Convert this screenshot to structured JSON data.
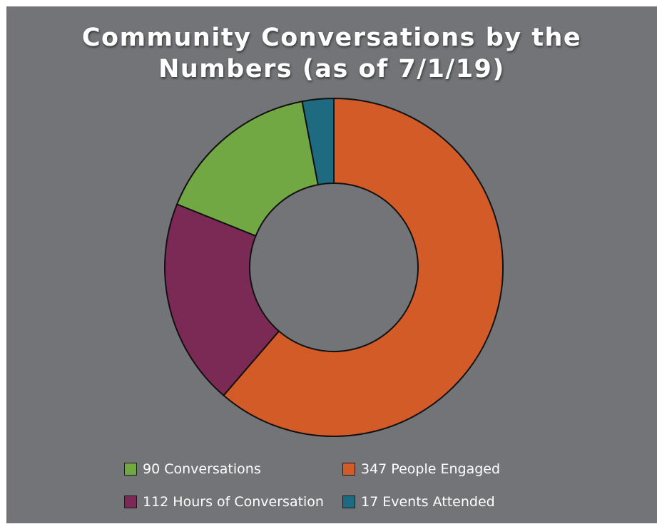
{
  "chart_data": {
    "type": "pie",
    "variant": "donut",
    "title_lines": [
      "Community Conversations by the",
      "Numbers (as of 7/1/19)"
    ],
    "categories": [
      "347 People Engaged",
      "112 Hours of Conversation",
      "90 Conversations",
      "17 Events Attended"
    ],
    "values": [
      347,
      112,
      90,
      17
    ],
    "colors": [
      "#d25b27",
      "#7a2a55",
      "#72a844",
      "#1e6a80"
    ],
    "legend_placement": "bottom",
    "legend_order": [
      2,
      0,
      1,
      3
    ]
  }
}
